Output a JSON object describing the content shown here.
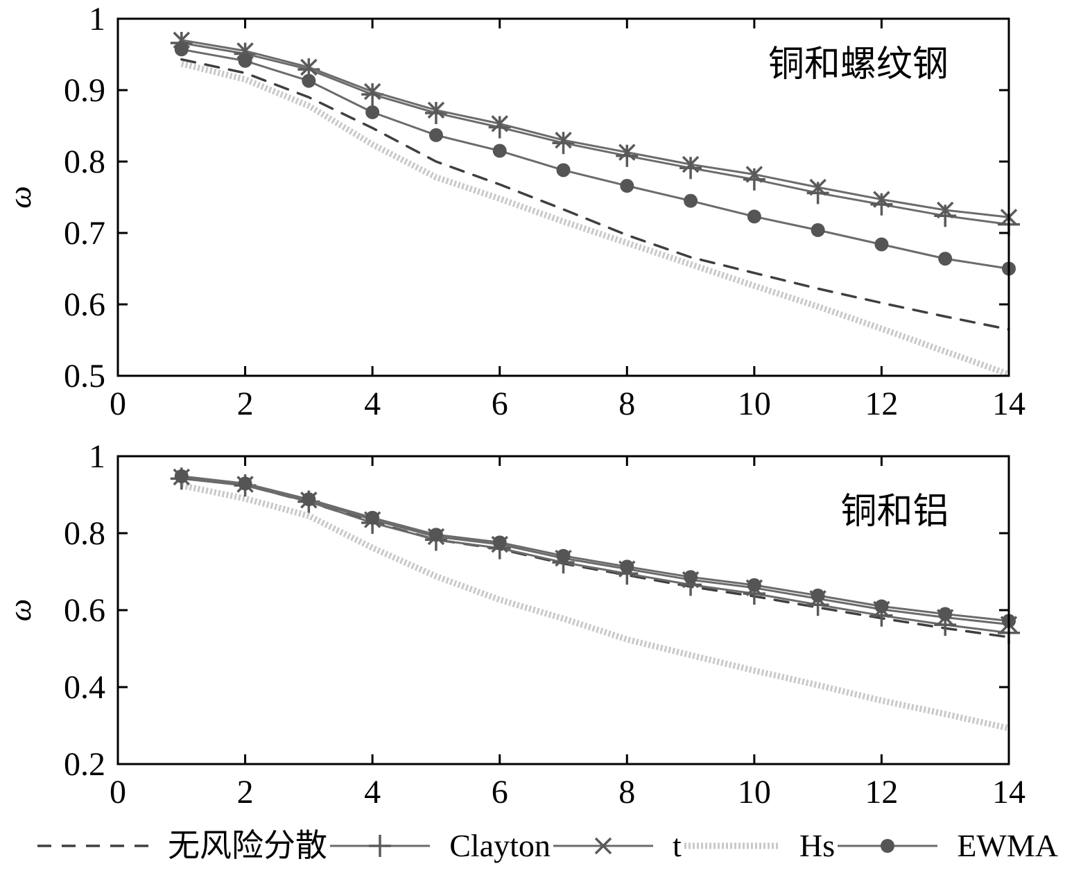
{
  "figure_title": "",
  "series_styles": {
    "riskfree": {
      "color": "#3f3f3f",
      "width": 3.5,
      "dash": "20 15",
      "marker": "none",
      "marker_color": "#3f3f3f",
      "marker_size": 0
    },
    "clayton": {
      "color": "#6b6b6b",
      "width": 3,
      "dash": "",
      "marker": "plus",
      "marker_color": "#5a5a5a",
      "marker_size": 16
    },
    "t": {
      "color": "#6b6b6b",
      "width": 3,
      "dash": "",
      "marker": "x",
      "marker_color": "#5a5a5a",
      "marker_size": 11
    },
    "hs": {
      "color": "#c9c9c9",
      "width": 9,
      "dash": "3 3",
      "marker": "none",
      "marker_color": "#c9c9c9",
      "marker_size": 0
    },
    "ewma": {
      "color": "#6b6b6b",
      "width": 3,
      "dash": "",
      "marker": "circle",
      "marker_color": "#555555",
      "marker_size": 10
    }
  },
  "draw_order": [
    "hs",
    "riskfree",
    "clayton",
    "t",
    "ewma"
  ],
  "axis_color": "#000000",
  "legend": {
    "items": [
      {
        "label": "无风险分散",
        "series": "riskfree"
      },
      {
        "label": "Clayton",
        "series": "clayton"
      },
      {
        "label": "t",
        "series": "t"
      },
      {
        "label": "Hs",
        "series": "hs"
      },
      {
        "label": "EWMA",
        "series": "ewma"
      }
    ]
  },
  "chart_data": [
    {
      "type": "line",
      "title": "铜和螺纹钢",
      "ylabel": "ω",
      "xlabel": "",
      "xlim": [
        0,
        14
      ],
      "ylim": [
        0.5,
        1
      ],
      "grid": false,
      "xticks": {
        "values": [
          0,
          2,
          4,
          6,
          8,
          10,
          12,
          14
        ],
        "labels": [
          "0",
          "2",
          "4",
          "6",
          "8",
          "10",
          "12",
          "14"
        ]
      },
      "yticks": {
        "values": [
          0.5,
          0.6,
          0.7,
          0.8,
          0.9,
          1
        ],
        "labels": [
          "0.5",
          "0.6",
          "0.7",
          "0.8",
          "0.9",
          "1"
        ]
      },
      "x": [
        1,
        2,
        3,
        4,
        5,
        6,
        7,
        8,
        9,
        10,
        11,
        12,
        13,
        14
      ],
      "series": [
        {
          "key": "riskfree",
          "name": "无风险分散",
          "values": [
            0.943,
            0.924,
            0.89,
            0.847,
            0.8,
            0.768,
            0.733,
            0.697,
            0.666,
            0.644,
            0.622,
            0.602,
            0.583,
            0.565
          ]
        },
        {
          "key": "clayton",
          "name": "Clayton",
          "values": [
            0.966,
            0.951,
            0.929,
            0.894,
            0.868,
            0.848,
            0.826,
            0.808,
            0.791,
            0.775,
            0.756,
            0.74,
            0.724,
            0.712
          ]
        },
        {
          "key": "t",
          "name": "t",
          "values": [
            0.97,
            0.955,
            0.932,
            0.898,
            0.872,
            0.853,
            0.83,
            0.813,
            0.796,
            0.782,
            0.764,
            0.747,
            0.732,
            0.722
          ]
        },
        {
          "key": "hs",
          "name": "Hs",
          "values": [
            0.937,
            0.915,
            0.878,
            0.824,
            0.778,
            0.748,
            0.716,
            0.686,
            0.656,
            0.626,
            0.597,
            0.566,
            0.534,
            0.502
          ]
        },
        {
          "key": "ewma",
          "name": "EWMA",
          "values": [
            0.957,
            0.941,
            0.913,
            0.869,
            0.837,
            0.815,
            0.788,
            0.766,
            0.745,
            0.723,
            0.704,
            0.684,
            0.664,
            0.65
          ]
        }
      ]
    },
    {
      "type": "line",
      "title": "铜和铝",
      "ylabel": "ω",
      "xlabel": "",
      "xlim": [
        0,
        14
      ],
      "ylim": [
        0.2,
        1
      ],
      "grid": false,
      "xticks": {
        "values": [
          0,
          2,
          4,
          6,
          8,
          10,
          12,
          14
        ],
        "labels": [
          "0",
          "2",
          "4",
          "6",
          "8",
          "10",
          "12",
          "14"
        ]
      },
      "yticks": {
        "values": [
          0.2,
          0.4,
          0.6,
          0.8,
          1
        ],
        "labels": [
          "0.2",
          "0.4",
          "0.6",
          "0.8",
          "1"
        ]
      },
      "x": [
        1,
        2,
        3,
        4,
        5,
        6,
        7,
        8,
        9,
        10,
        11,
        12,
        13,
        14
      ],
      "series": [
        {
          "key": "riskfree",
          "name": "无风险分散",
          "values": [
            0.943,
            0.925,
            0.881,
            0.829,
            0.783,
            0.759,
            0.721,
            0.691,
            0.661,
            0.636,
            0.607,
            0.579,
            0.553,
            0.53
          ]
        },
        {
          "key": "clayton",
          "name": "Clayton",
          "values": [
            0.942,
            0.924,
            0.882,
            0.827,
            0.783,
            0.761,
            0.724,
            0.695,
            0.666,
            0.643,
            0.614,
            0.586,
            0.562,
            0.541
          ]
        },
        {
          "key": "t",
          "name": "t",
          "values": [
            0.946,
            0.927,
            0.886,
            0.835,
            0.791,
            0.771,
            0.735,
            0.707,
            0.679,
            0.658,
            0.63,
            0.602,
            0.581,
            0.563
          ]
        },
        {
          "key": "hs",
          "name": "Hs",
          "values": [
            0.924,
            0.89,
            0.845,
            0.762,
            0.688,
            0.627,
            0.578,
            0.524,
            0.483,
            0.443,
            0.405,
            0.365,
            0.33,
            0.293
          ]
        },
        {
          "key": "ewma",
          "name": "EWMA",
          "values": [
            0.948,
            0.929,
            0.888,
            0.84,
            0.796,
            0.776,
            0.741,
            0.713,
            0.686,
            0.665,
            0.638,
            0.61,
            0.59,
            0.572
          ]
        }
      ]
    }
  ]
}
